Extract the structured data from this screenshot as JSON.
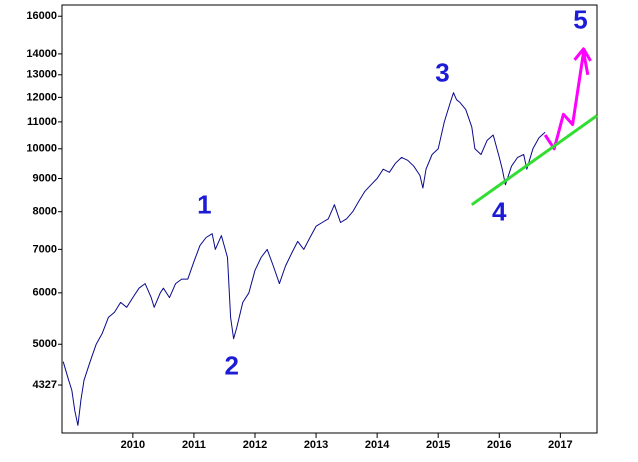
{
  "chart_data": {
    "type": "line",
    "log_scale": true,
    "xlim": [
      2008.84,
      2017.6
    ],
    "xticks": [
      2010,
      2011,
      2012,
      2013,
      2014,
      2015,
      2016,
      2017
    ],
    "ylim": [
      3650,
      16650
    ],
    "yticks": [
      4327,
      5000,
      6000,
      7000,
      8000,
      9000,
      10000,
      11000,
      12000,
      13000,
      14000,
      16000
    ],
    "series": [
      {
        "color": "#0a0a8c",
        "x": [
          2008.86,
          2008.95,
          2009.0,
          2009.05,
          2009.1,
          2009.15,
          2009.2,
          2009.3,
          2009.4,
          2009.5,
          2009.6,
          2009.7,
          2009.8,
          2009.9,
          2010.0,
          2010.1,
          2010.2,
          2010.3,
          2010.35,
          2010.45,
          2010.5,
          2010.6,
          2010.7,
          2010.8,
          2010.9,
          2011.0,
          2011.1,
          2011.2,
          2011.3,
          2011.35,
          2011.45,
          2011.55,
          2011.6,
          2011.65,
          2011.7,
          2011.8,
          2011.9,
          2012.0,
          2012.1,
          2012.2,
          2012.3,
          2012.4,
          2012.5,
          2012.6,
          2012.7,
          2012.8,
          2012.9,
          2013.0,
          2013.1,
          2013.2,
          2013.3,
          2013.4,
          2013.5,
          2013.6,
          2013.7,
          2013.8,
          2013.9,
          2014.0,
          2014.1,
          2014.2,
          2014.3,
          2014.4,
          2014.5,
          2014.6,
          2014.7,
          2014.75,
          2014.8,
          2014.9,
          2015.0,
          2015.1,
          2015.2,
          2015.25,
          2015.3,
          2015.35,
          2015.45,
          2015.55,
          2015.6,
          2015.7,
          2015.8,
          2015.9,
          2016.0,
          2016.05,
          2016.1,
          2016.2,
          2016.3,
          2016.4,
          2016.45,
          2016.55,
          2016.65,
          2016.75
        ],
        "values": [
          4700,
          4400,
          4250,
          3950,
          3750,
          4100,
          4400,
          4700,
          5000,
          5200,
          5500,
          5600,
          5800,
          5700,
          5900,
          6100,
          6200,
          5900,
          5700,
          6000,
          6100,
          5900,
          6200,
          6300,
          6300,
          6700,
          7100,
          7300,
          7400,
          7000,
          7350,
          6800,
          5500,
          5100,
          5300,
          5800,
          6000,
          6500,
          6800,
          7000,
          6600,
          6200,
          6600,
          6900,
          7200,
          7000,
          7300,
          7600,
          7700,
          7800,
          8200,
          7700,
          7800,
          8000,
          8300,
          8600,
          8800,
          9000,
          9300,
          9200,
          9500,
          9700,
          9600,
          9400,
          9100,
          8700,
          9300,
          9800,
          10000,
          11000,
          11800,
          12200,
          11900,
          11800,
          11500,
          10800,
          10000,
          9800,
          10300,
          10500,
          9700,
          9300,
          8800,
          9400,
          9700,
          9800,
          9300,
          10000,
          10400,
          10600
        ]
      },
      {
        "color": "#ff00ff",
        "x": [
          2016.75,
          2016.9,
          2017.05,
          2017.2,
          2017.38,
          2017.45
        ],
        "values": [
          10500,
          10000,
          11300,
          10900,
          14100,
          13000
        ]
      },
      {
        "color": "#33dd33",
        "x": [
          2015.55,
          2017.6
        ],
        "values": [
          8200,
          11250
        ]
      }
    ],
    "annotations": [
      {
        "text": "1",
        "x": 2011.17,
        "y": 8150,
        "color": "#1c1cd6"
      },
      {
        "text": "2",
        "x": 2011.62,
        "y": 4600,
        "color": "#1c1cd6"
      },
      {
        "text": "3",
        "x": 2015.07,
        "y": 13000,
        "color": "#1c1cd6"
      },
      {
        "text": "4",
        "x": 2016.0,
        "y": 7950,
        "color": "#1c1cd6"
      },
      {
        "text": "5",
        "x": 2017.33,
        "y": 15700,
        "color": "#1c1cd6"
      }
    ]
  }
}
